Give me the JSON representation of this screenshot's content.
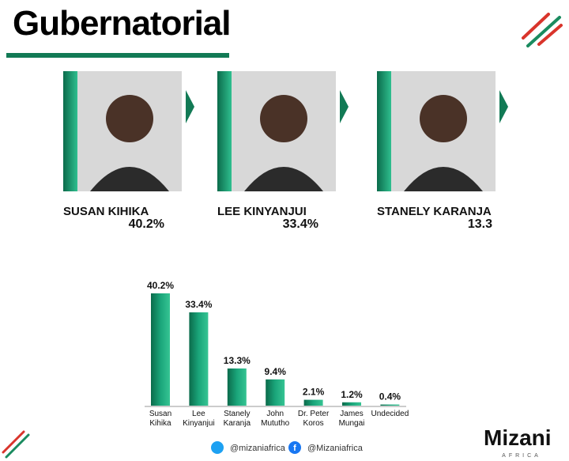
{
  "header": {
    "title": "Gubernatorial"
  },
  "candidates": [
    {
      "name": "SUSAN KIHIKA",
      "share": "40.2%"
    },
    {
      "name": "LEE KINYANJUI",
      "share": "33.4%"
    },
    {
      "name": "STANELY KARANJA",
      "share": "13.3"
    }
  ],
  "chart_data": {
    "type": "bar",
    "categories": [
      "Susan Kihika",
      "Lee Kinyanjui",
      "Stanely Karanja",
      "John Mututho",
      "Dr. Peter Koros",
      "James Mungai",
      "Undecided"
    ],
    "values": [
      40.2,
      33.4,
      13.3,
      9.4,
      2.1,
      1.2,
      0.4
    ],
    "value_labels": [
      "40.2%",
      "33.4%",
      "13.3%",
      "9.4%",
      "2.1%",
      "1.2%",
      "0.4%"
    ],
    "color": "#0f8a62"
  },
  "footer": {
    "twitter": "@mizaniafrica",
    "facebook": "@Mizaniafrica",
    "logo": "Mizani",
    "logo_sub": "AFRICA"
  }
}
